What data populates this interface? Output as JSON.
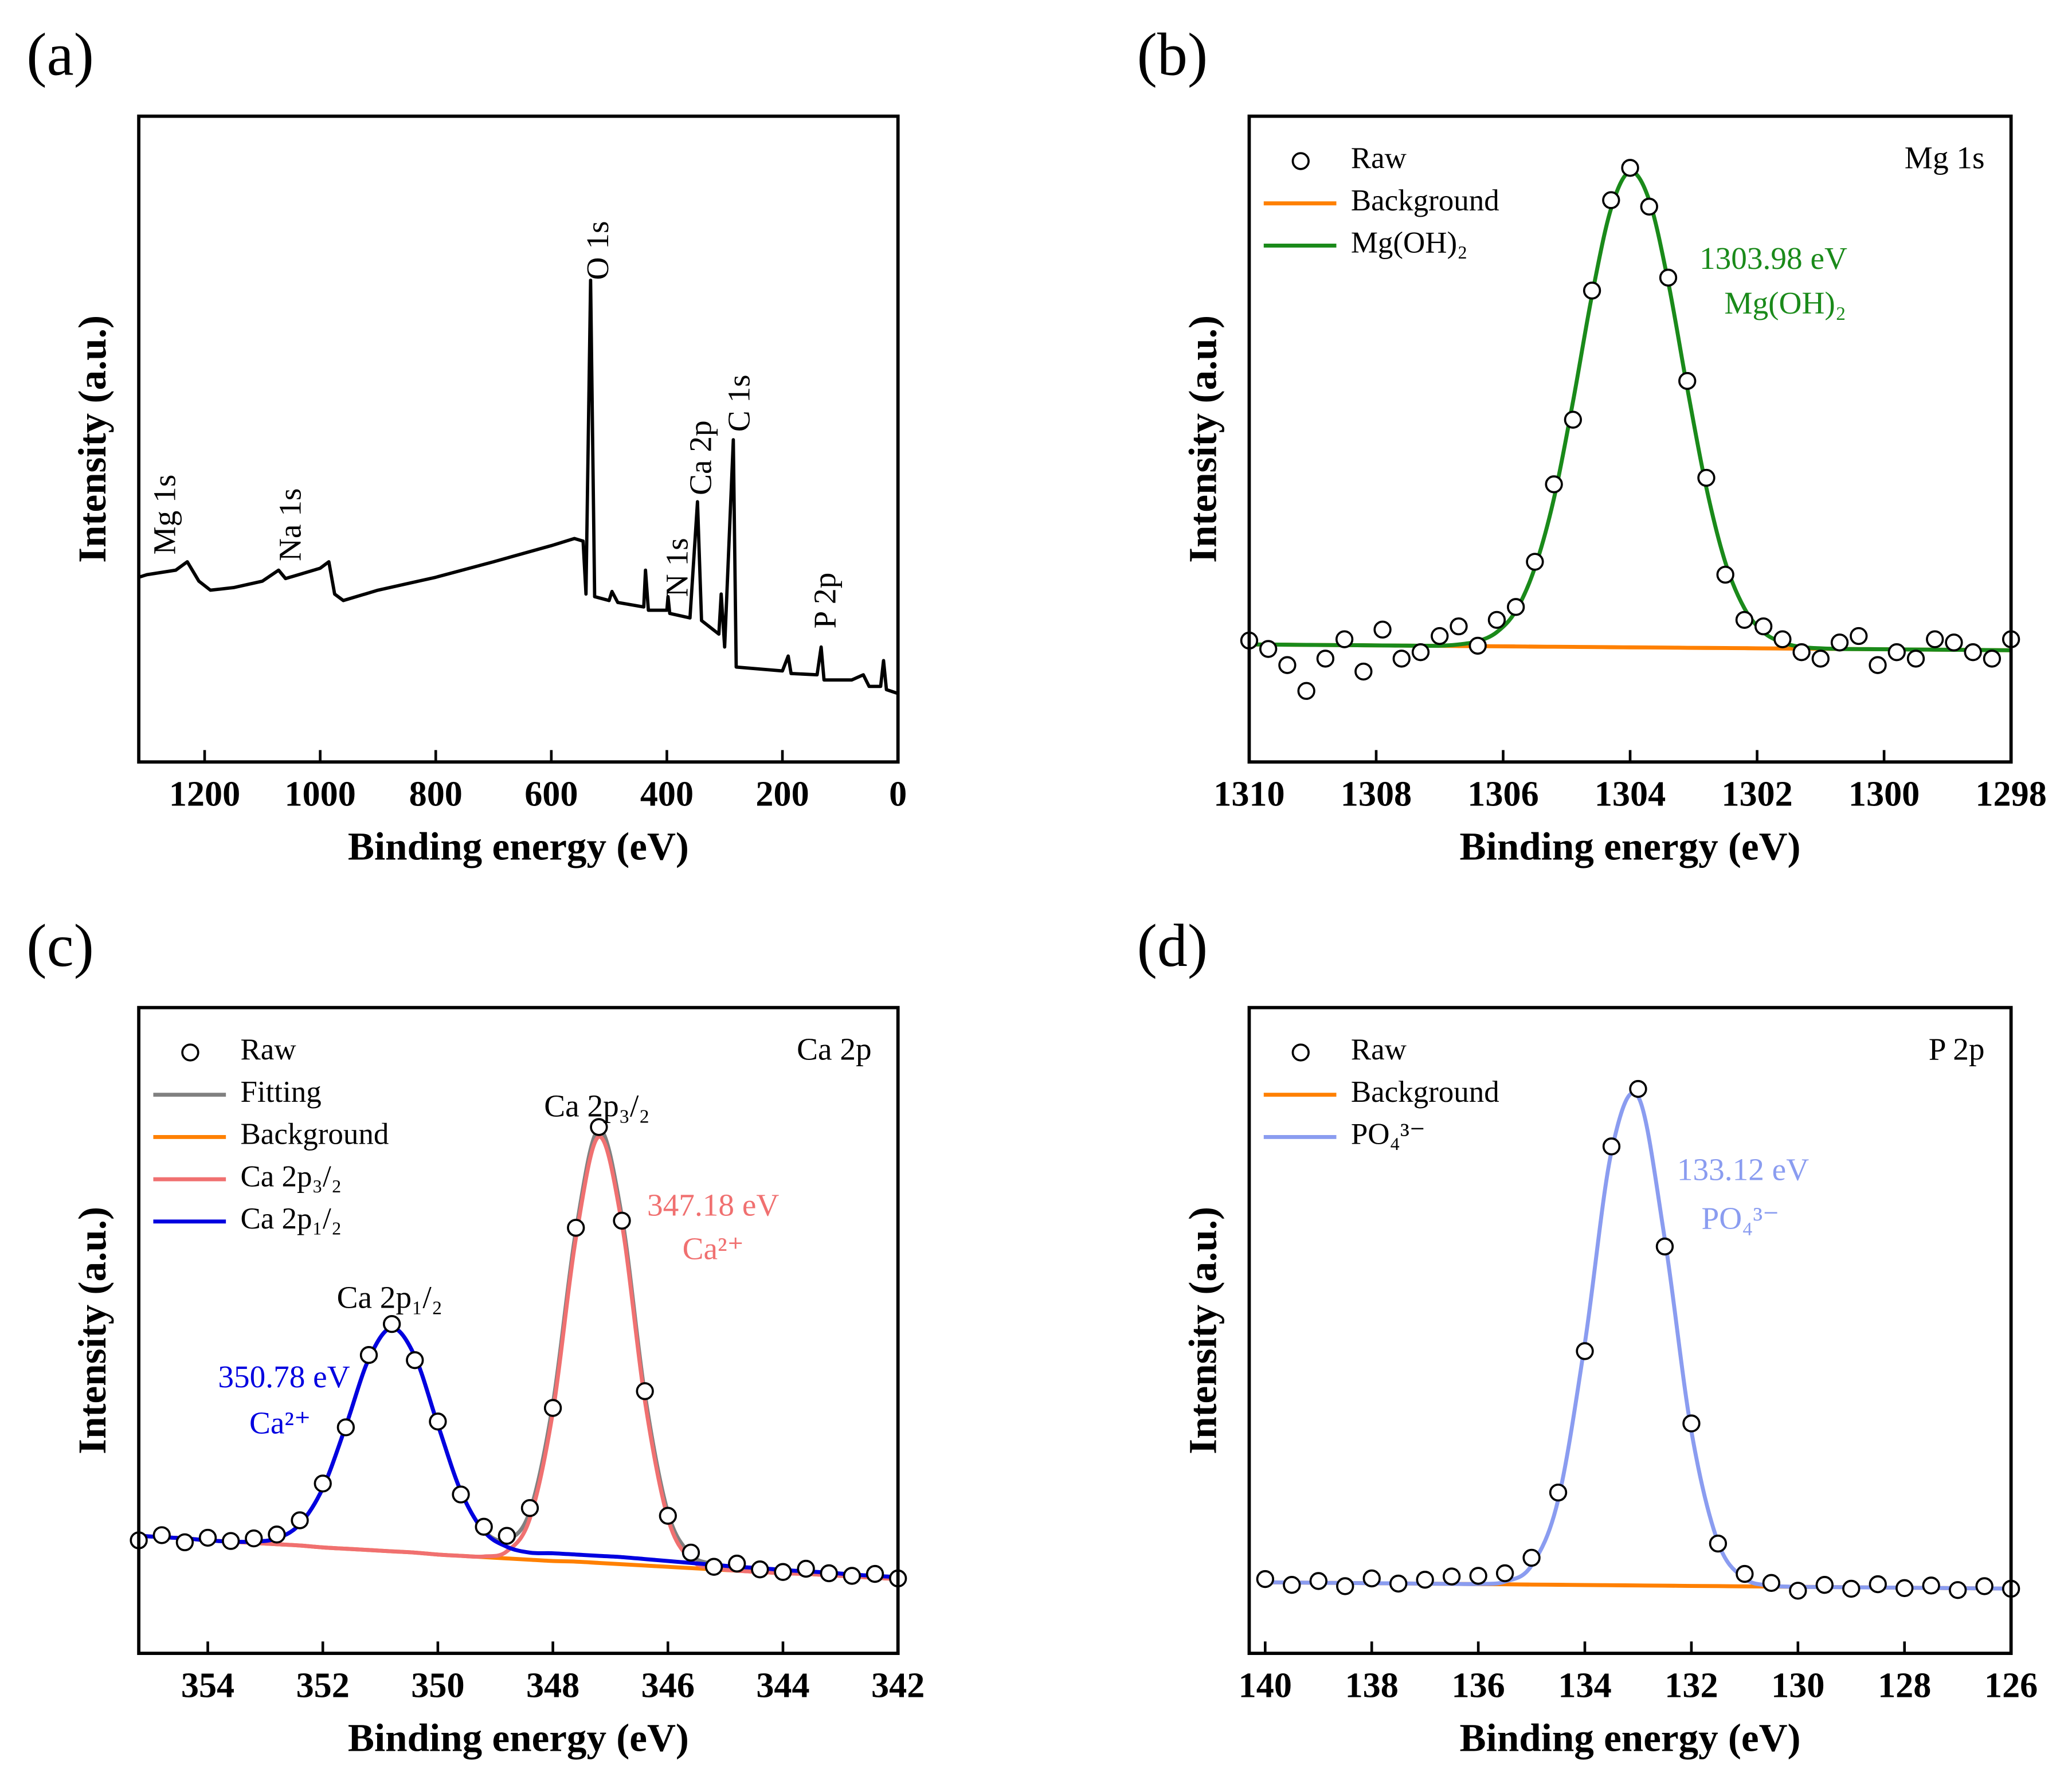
{
  "chart_data": [
    {
      "type": "line",
      "panel_label": "(a)",
      "xlabel": "Binding energy (eV)",
      "ylabel": "Intensity (a.u.)",
      "xlim": [
        1314,
        0
      ],
      "xticks": [
        1200,
        1000,
        800,
        600,
        400,
        200,
        0
      ],
      "ylim": [
        0,
        100
      ],
      "color": "#000000",
      "x": [
        1314,
        1300,
        1250,
        1230,
        1210,
        1190,
        1150,
        1100,
        1072,
        1060,
        1000,
        985,
        975,
        960,
        900,
        800,
        700,
        600,
        560,
        545,
        540,
        532,
        525,
        500,
        495,
        485,
        440,
        437,
        432,
        400,
        398,
        395,
        360,
        347,
        340,
        310,
        306,
        300,
        285,
        280,
        200,
        190,
        185,
        140,
        133,
        128,
        80,
        60,
        50,
        30,
        25,
        20,
        0
      ],
      "values": [
        28.6,
        29,
        29.7,
        31,
        28,
        26.6,
        27,
        28,
        29.7,
        28.4,
        30,
        31,
        26,
        25,
        26.6,
        28.6,
        31,
        33.5,
        34.6,
        34.2,
        26,
        74.6,
        25.6,
        25,
        26.4,
        24.7,
        24,
        29.7,
        23.5,
        23.5,
        25.6,
        23,
        22.3,
        40.3,
        21.9,
        19.8,
        26,
        17.8,
        49.9,
        14.7,
        14.1,
        16.4,
        13.7,
        13.5,
        17.8,
        12.7,
        12.7,
        13.5,
        11.7,
        11.7,
        15.7,
        11.2,
        10.6
      ],
      "annotations": [
        {
          "text": "Mg 1s"
        },
        {
          "text": "Na 1s"
        },
        {
          "text": "O 1s"
        },
        {
          "text": "N 1s"
        },
        {
          "text": "Ca 2p"
        },
        {
          "text": "C 1s"
        },
        {
          "text": "P 2p"
        }
      ]
    },
    {
      "type": "line",
      "panel_label": "(b)",
      "title": "Mg 1s",
      "xlabel": "Binding energy (eV)",
      "ylabel": "Intensity (a.u.)",
      "xlim": [
        1310,
        1298
      ],
      "xticks": [
        1310,
        1308,
        1306,
        1304,
        1302,
        1300,
        1298
      ],
      "ylim": [
        0,
        100
      ],
      "x": [
        1310,
        1309.7,
        1309.4,
        1309.1,
        1308.8,
        1308.5,
        1308.2,
        1307.9,
        1307.6,
        1307.3,
        1307.0,
        1306.7,
        1306.4,
        1306.1,
        1305.8,
        1305.5,
        1305.2,
        1304.9,
        1304.6,
        1304.3,
        1304.0,
        1303.7,
        1303.4,
        1303.1,
        1302.8,
        1302.5,
        1302.2,
        1301.9,
        1301.6,
        1301.3,
        1301.0,
        1300.7,
        1300.4,
        1300.1,
        1299.8,
        1299.5,
        1299.2,
        1298.9,
        1298.6,
        1298.3,
        1298.0
      ],
      "series": [
        {
          "name": "Raw",
          "style": "markers",
          "color": "#000000",
          "values": [
            18.8,
            17.5,
            15,
            11,
            16,
            19,
            14,
            20.5,
            16,
            17,
            19.5,
            21,
            18,
            22,
            24,
            31,
            43,
            53,
            73,
            87,
            92,
            86,
            75,
            59,
            44,
            29,
            22,
            21,
            19,
            17,
            16,
            18.5,
            19.5,
            15,
            17,
            16,
            19,
            18.5,
            17,
            16,
            19
          ]
        },
        {
          "name": "Background",
          "style": "line",
          "color": "#ff8000",
          "values": [
            18.2,
            18.18,
            18.16,
            18.13,
            18.11,
            18.09,
            18.07,
            18.04,
            18.02,
            18.0,
            17.98,
            17.95,
            17.93,
            17.91,
            17.89,
            17.86,
            17.84,
            17.82,
            17.8,
            17.77,
            17.75,
            17.73,
            17.71,
            17.68,
            17.66,
            17.64,
            17.62,
            17.59,
            17.57,
            17.55,
            17.53,
            17.5,
            17.48,
            17.46,
            17.44,
            17.41,
            17.39,
            17.37,
            17.35,
            17.32,
            17.3
          ]
        },
        {
          "name": "Mg(OH)₂",
          "style": "line",
          "color": "#1a8a1a",
          "values": [
            18.2,
            18.18,
            18.16,
            18.13,
            18.11,
            18.09,
            18.07,
            18.04,
            18.02,
            18.0,
            18.0,
            18.2,
            18.7,
            20.1,
            23.4,
            30.1,
            40.8,
            55.8,
            72.3,
            85.7,
            91.4,
            87.0,
            74.3,
            57.9,
            42.5,
            30.9,
            23.8,
            20.1,
            18.5,
            17.8,
            17.6,
            17.5,
            17.48,
            17.46,
            17.44,
            17.41,
            17.39,
            17.37,
            17.35,
            17.32,
            17.3
          ]
        }
      ],
      "annotations": [
        {
          "text": "1303.98 eV",
          "color": "#1a8a1a"
        },
        {
          "text": "Mg(OH)₂",
          "color": "#1a8a1a"
        }
      ]
    },
    {
      "type": "line",
      "panel_label": "(c)",
      "title": "Ca 2p",
      "xlabel": "Binding energy (eV)",
      "ylabel": "Intensity (a.u.)",
      "xlim": [
        355.2,
        342
      ],
      "xticks": [
        354,
        352,
        350,
        348,
        346,
        344,
        342
      ],
      "ylim": [
        0,
        100
      ],
      "x": [
        355.2,
        354.8,
        354.4,
        354.0,
        353.6,
        353.2,
        352.8,
        352.4,
        352.0,
        351.6,
        351.2,
        350.8,
        350.4,
        350.0,
        349.6,
        349.2,
        348.8,
        348.4,
        348.0,
        347.6,
        347.2,
        346.8,
        346.4,
        346.0,
        345.6,
        345.2,
        344.8,
        344.4,
        344.0,
        343.6,
        343.2,
        342.8,
        342.4,
        342.0
      ],
      "series": [
        {
          "name": "Raw",
          "style": "markers",
          "color": "#000000",
          "values": [
            17.5,
            18.3,
            17.2,
            17.9,
            17.4,
            17.8,
            18.4,
            20.6,
            26.3,
            35.0,
            46.2,
            51.0,
            45.4,
            35.9,
            24.6,
            19.6,
            18.2,
            22.5,
            38.0,
            65.9,
            81.5,
            67.0,
            40.6,
            21.3,
            15.6,
            13.4,
            13.9,
            13.0,
            12.6,
            13.1,
            12.4,
            12.0,
            12.3,
            11.6
          ]
        },
        {
          "name": "Fitting",
          "style": "line",
          "color": "#808080",
          "values": [
            18.2,
            18.0,
            17.8,
            17.5,
            17.3,
            17.3,
            17.8,
            20.0,
            25.6,
            35.2,
            45.6,
            50.4,
            46.0,
            35.4,
            25.1,
            19.0,
            17.6,
            22.0,
            38.6,
            65.4,
            81.1,
            67.6,
            40.1,
            21.8,
            15.3,
            13.85,
            13.4,
            13.2,
            12.9,
            12.7,
            12.5,
            12.2,
            12.0,
            11.8
          ]
        },
        {
          "name": "Background",
          "style": "line",
          "color": "#ff8000",
          "values": [
            18.2,
            18.0,
            17.8,
            17.5,
            17.3,
            17.1,
            16.9,
            16.7,
            16.4,
            16.2,
            16.0,
            15.8,
            15.6,
            15.3,
            15.1,
            14.9,
            14.7,
            14.5,
            14.3,
            14.2,
            14.0,
            13.8,
            13.6,
            13.4,
            13.2,
            13.0,
            12.8,
            12.6,
            12.4,
            12.3,
            12.1,
            11.9,
            11.7,
            11.5
          ]
        },
        {
          "name": "Ca 2p₃/₂",
          "style": "line",
          "color": "#f07070",
          "values": [
            18.2,
            18.0,
            17.8,
            17.5,
            17.3,
            17.1,
            16.9,
            16.7,
            16.4,
            16.2,
            16.0,
            15.8,
            15.6,
            15.3,
            15.1,
            15.0,
            15.8,
            20.9,
            37.4,
            64.3,
            80.0,
            66.5,
            39.1,
            20.9,
            14.5,
            13.2,
            12.8,
            12.6,
            12.4,
            12.3,
            12.1,
            11.9,
            11.7,
            11.5
          ]
        },
        {
          "name": "Ca 2p₁/₂",
          "style": "line",
          "color": "#0000e0",
          "values": [
            18.2,
            18.0,
            17.8,
            17.5,
            17.3,
            17.3,
            17.8,
            20.0,
            25.6,
            35.2,
            45.6,
            50.4,
            46.0,
            35.4,
            25.1,
            18.9,
            16.5,
            15.6,
            15.5,
            15.3,
            15.1,
            14.9,
            14.6,
            14.3,
            14.0,
            13.7,
            13.4,
            13.2,
            12.9,
            12.7,
            12.5,
            12.2,
            12.0,
            11.8
          ]
        }
      ],
      "annotations": [
        {
          "text": "Ca 2p₃/₂",
          "color": "#000000"
        },
        {
          "text": "Ca 2p₁/₂",
          "color": "#000000"
        },
        {
          "text": "347.18 eV",
          "color": "#f07070"
        },
        {
          "text": "Ca²⁺",
          "color": "#f07070"
        },
        {
          "text": "350.78 eV",
          "color": "#0000e0"
        },
        {
          "text": "Ca²⁺",
          "color": "#0000e0"
        }
      ]
    },
    {
      "type": "line",
      "panel_label": "(d)",
      "title": "P 2p",
      "xlabel": "Binding energy (eV)",
      "ylabel": "Intensity (a.u.)",
      "xlim": [
        140.3,
        126
      ],
      "xticks": [
        140,
        138,
        136,
        134,
        132,
        130,
        128,
        126
      ],
      "ylim": [
        0,
        100
      ],
      "x": [
        140,
        139.5,
        139,
        138.5,
        138,
        137.5,
        137,
        136.5,
        136,
        135.5,
        135,
        134.5,
        134,
        133.5,
        133,
        132.5,
        132,
        131.5,
        131,
        130.5,
        130,
        129.5,
        129,
        128.5,
        128,
        127.5,
        127,
        126.5,
        126
      ],
      "series": [
        {
          "name": "Raw",
          "style": "markers",
          "color": "#000000",
          "values": [
            11.5,
            10.6,
            11.2,
            10.4,
            11.6,
            10.8,
            11.4,
            11.9,
            12.0,
            12.4,
            14.8,
            24.9,
            46.8,
            78.5,
            87.4,
            63.0,
            35.6,
            17.0,
            12.3,
            10.9,
            9.7,
            10.6,
            10.0,
            10.7,
            10.1,
            10.5,
            9.8,
            10.4,
            10.0
          ]
        },
        {
          "name": "Background",
          "style": "line",
          "color": "#ff8000",
          "values": [
            11.0,
            10.97,
            10.93,
            10.9,
            10.86,
            10.83,
            10.79,
            10.76,
            10.72,
            10.69,
            10.65,
            10.62,
            10.58,
            10.55,
            10.51,
            10.48,
            10.44,
            10.41,
            10.37,
            10.34,
            10.3,
            10.27,
            10.23,
            10.2,
            10.16,
            10.13,
            10.09,
            10.06,
            10.02
          ]
        },
        {
          "name": "PO₄³⁻",
          "style": "line",
          "color": "#8a9cf0",
          "values": [
            11.0,
            10.97,
            10.93,
            10.9,
            10.86,
            10.83,
            10.79,
            10.76,
            10.75,
            11.1,
            13.6,
            23.8,
            48.0,
            77.7,
            86.2,
            64.2,
            34.4,
            17.2,
            11.6,
            10.5,
            10.3,
            10.27,
            10.23,
            10.2,
            10.16,
            10.13,
            10.09,
            10.06,
            10.02
          ]
        }
      ],
      "annotations": [
        {
          "text": "133.12 eV",
          "color": "#8a9cf0"
        },
        {
          "text": "PO₄³⁻",
          "color": "#8a9cf0"
        }
      ]
    }
  ]
}
